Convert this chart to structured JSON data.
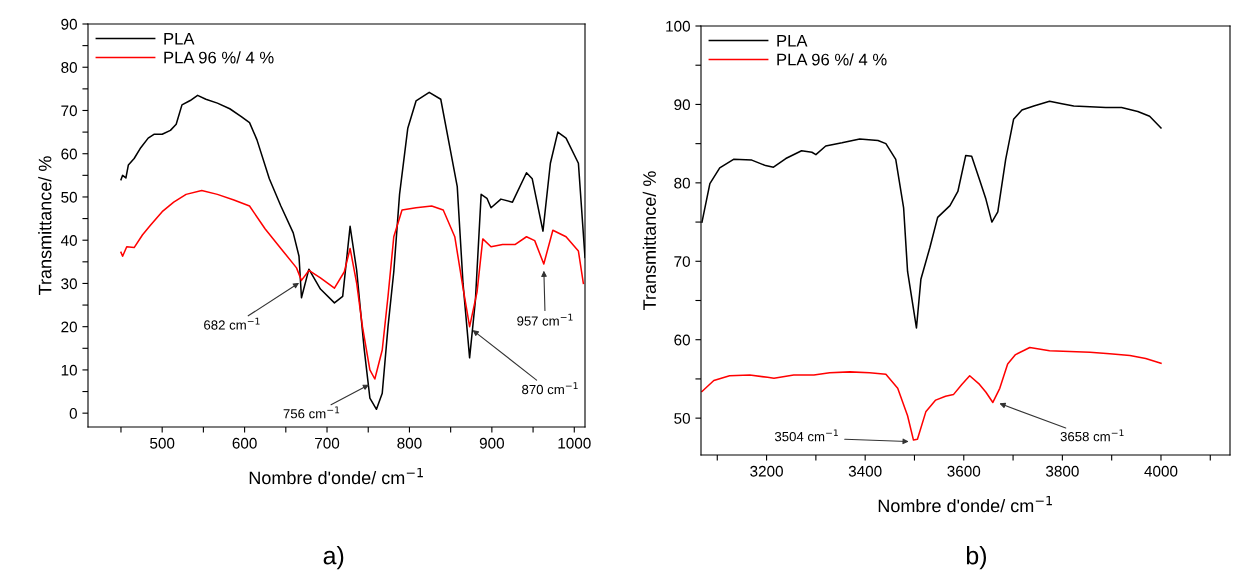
{
  "chart_data": [
    {
      "type": "line",
      "xlabel": "Nombre d'onde/ cm$^{−1}$",
      "ylabel": "Transmittance/ %",
      "xlim": [
        410,
        1013
      ],
      "ylim": [
        -3.2,
        90
      ],
      "xticks": [
        {
          "value": 450,
          "label": null
        },
        500,
        {
          "value": 550,
          "label": null
        },
        600,
        {
          "value": 650,
          "label": null
        },
        700,
        {
          "value": 750,
          "label": null
        },
        800,
        {
          "value": 850,
          "label": null
        },
        900,
        {
          "value": 950,
          "label": null
        },
        1000
      ],
      "yticks": [
        0,
        {
          "value": 5,
          "label": null
        },
        10,
        {
          "value": 15,
          "label": null
        },
        20,
        {
          "value": 25,
          "label": null
        },
        30,
        {
          "value": 35,
          "label": null
        },
        40,
        {
          "value": 45,
          "label": null
        },
        50,
        {
          "value": 55,
          "label": null
        },
        60,
        {
          "value": 65,
          "label": null
        },
        70,
        {
          "value": 75,
          "label": null
        },
        80,
        {
          "value": 85,
          "label": null
        },
        90
      ],
      "grid": false,
      "legend": "top left",
      "marker": "none",
      "line_style": "solid",
      "series": [
        {
          "name": "PLA",
          "color": "#000000",
          "x": [
            450,
            452,
            456,
            459,
            466,
            474,
            483,
            490,
            500,
            510,
            517,
            524,
            534,
            543,
            553,
            567,
            582,
            596,
            606,
            615,
            630,
            644,
            659,
            666,
            669,
            678,
            692,
            709,
            719,
            728,
            736,
            745,
            752,
            760,
            767,
            774,
            781,
            788,
            798,
            808,
            824,
            838,
            850,
            858,
            865,
            873,
            880,
            887,
            894,
            899,
            911,
            925,
            942,
            949,
            962,
            971,
            980,
            990,
            1005,
            1013
          ],
          "values": [
            54,
            55,
            54.4,
            57.4,
            58.9,
            61.4,
            63.6,
            64.5,
            64.5,
            65.4,
            66.8,
            71.3,
            72.3,
            73.5,
            72.6,
            71.7,
            70.4,
            68.6,
            67.2,
            63.2,
            54.2,
            47.9,
            41.7,
            36.3,
            26.7,
            33.3,
            28.7,
            25.5,
            27,
            43.2,
            33,
            15,
            3.5,
            0.9,
            4.6,
            20,
            32.7,
            50.6,
            65.9,
            72.2,
            74.2,
            72.6,
            60.5,
            52.4,
            30,
            12.8,
            26,
            50.6,
            49.7,
            47.5,
            49.5,
            48.8,
            55.6,
            54.2,
            42.1,
            57.8,
            65,
            63.6,
            57.8,
            36
          ]
        },
        {
          "name": "PLA 96 %/ 4 %",
          "color": "#ff0000",
          "x": [
            450,
            452,
            457,
            466,
            476,
            486,
            500,
            514,
            529,
            548,
            567,
            587,
            606,
            625,
            644,
            663,
            669,
            678,
            692,
            709,
            721,
            728,
            736,
            743,
            752,
            758,
            767,
            774,
            781,
            791,
            808,
            827,
            841,
            855,
            865,
            873,
            882,
            889,
            899,
            913,
            928,
            942,
            952,
            963,
            974,
            990,
            1005,
            1011
          ],
          "values": [
            37.2,
            36.3,
            38.5,
            38.3,
            41.2,
            43.5,
            46.6,
            48.8,
            50.6,
            51.5,
            50.6,
            49.3,
            47.9,
            42.6,
            38.1,
            33.6,
            30.7,
            33,
            31.3,
            28.9,
            32.7,
            38.1,
            30,
            20,
            10,
            7.9,
            14.6,
            27,
            40.8,
            47,
            47.5,
            47.9,
            47,
            40.8,
            29,
            20,
            28,
            40.3,
            38.5,
            39,
            39,
            40.8,
            39.9,
            34.5,
            42.3,
            40.8,
            37.5,
            30
          ]
        }
      ],
      "annotations": [
        {
          "text": "682 cm$^{−1}$",
          "x": 669,
          "y": 30.5
        },
        {
          "text": "756 cm$^{−1}$",
          "x": 754,
          "y": 6.9
        },
        {
          "text": "870 cm$^{−1}$",
          "x": 874,
          "y": 19.6
        },
        {
          "text": "957 cm$^{−1}$",
          "x": 963,
          "y": 33.6
        },
        "a)"
      ]
    },
    {
      "type": "line",
      "xlabel": "Nombre d'onde/ cm$^{−1}$",
      "ylabel": "Transmittance/ %",
      "xlim": [
        3067,
        4140
      ],
      "ylim": [
        45.3,
        100
      ],
      "xticks": [
        {
          "value": 3100,
          "label": null
        },
        3200,
        {
          "value": 3300,
          "label": null
        },
        3400,
        {
          "value": 3500,
          "label": null
        },
        3600,
        {
          "value": 3700,
          "label": null
        },
        3800,
        {
          "value": 3900,
          "label": null
        },
        4000,
        {
          "value": 4100,
          "label": null
        }
      ],
      "yticks": [
        50,
        {
          "value": 55,
          "label": null
        },
        60,
        {
          "value": 65,
          "label": null
        },
        70,
        {
          "value": 75,
          "label": null
        },
        80,
        {
          "value": 85,
          "label": null
        },
        90,
        {
          "value": 95,
          "label": null
        },
        100
      ],
      "grid": false,
      "legend": "top left",
      "marker": "none",
      "line_style": "solid",
      "series": [
        {
          "name": "PLA",
          "color": "#000000",
          "x": [
            3069,
            3085,
            3105,
            3133,
            3170,
            3198,
            3214,
            3239,
            3271,
            3292,
            3300,
            3320,
            3353,
            3389,
            3426,
            3442,
            3462,
            3478,
            3486,
            3504,
            3513,
            3531,
            3547,
            3572,
            3588,
            3604,
            3616,
            3632,
            3645,
            3657,
            3669,
            3685,
            3701,
            3718,
            3742,
            3774,
            3799,
            3823,
            3856,
            3888,
            3920,
            3953,
            3977,
            4000
          ],
          "values": [
            75,
            79.9,
            81.9,
            83,
            82.9,
            82.2,
            82,
            83.1,
            84.1,
            83.9,
            83.6,
            84.7,
            85.1,
            85.6,
            85.4,
            85,
            83,
            76.8,
            68.7,
            61.5,
            67.7,
            71.7,
            75.6,
            77.1,
            78.9,
            83.5,
            83.4,
            80.4,
            77.9,
            75,
            76.3,
            83,
            88.1,
            89.3,
            89.8,
            90.4,
            90.1,
            89.8,
            89.7,
            89.6,
            89.6,
            89.1,
            88.5,
            87
          ]
        },
        {
          "name": "PLA 96 %/ 4 %",
          "color": "#ff0000",
          "x": [
            3069,
            3093,
            3125,
            3166,
            3202,
            3215,
            3255,
            3296,
            3328,
            3369,
            3409,
            3442,
            3466,
            3486,
            3498,
            3506,
            3523,
            3543,
            3563,
            3579,
            3596,
            3612,
            3632,
            3645,
            3659,
            3673,
            3689,
            3705,
            3734,
            3774,
            3815,
            3856,
            3896,
            3937,
            3969,
            4000
          ],
          "values": [
            53.4,
            54.8,
            55.4,
            55.5,
            55.2,
            55.1,
            55.5,
            55.5,
            55.8,
            55.9,
            55.8,
            55.6,
            53.8,
            50.3,
            47.2,
            47.3,
            50.8,
            52.3,
            52.8,
            53,
            54.3,
            55.4,
            54.3,
            53.3,
            52,
            53.8,
            56.9,
            58.1,
            59,
            58.6,
            58.5,
            58.4,
            58.2,
            58,
            57.6,
            57
          ]
        }
      ],
      "annotations": [
        {
          "text": "3504 cm$^{−1}$",
          "x": 3494,
          "y": 47
        },
        {
          "text": "3658 cm$^{−1}$",
          "x": 3667,
          "y": 52
        },
        "b)"
      ]
    }
  ]
}
